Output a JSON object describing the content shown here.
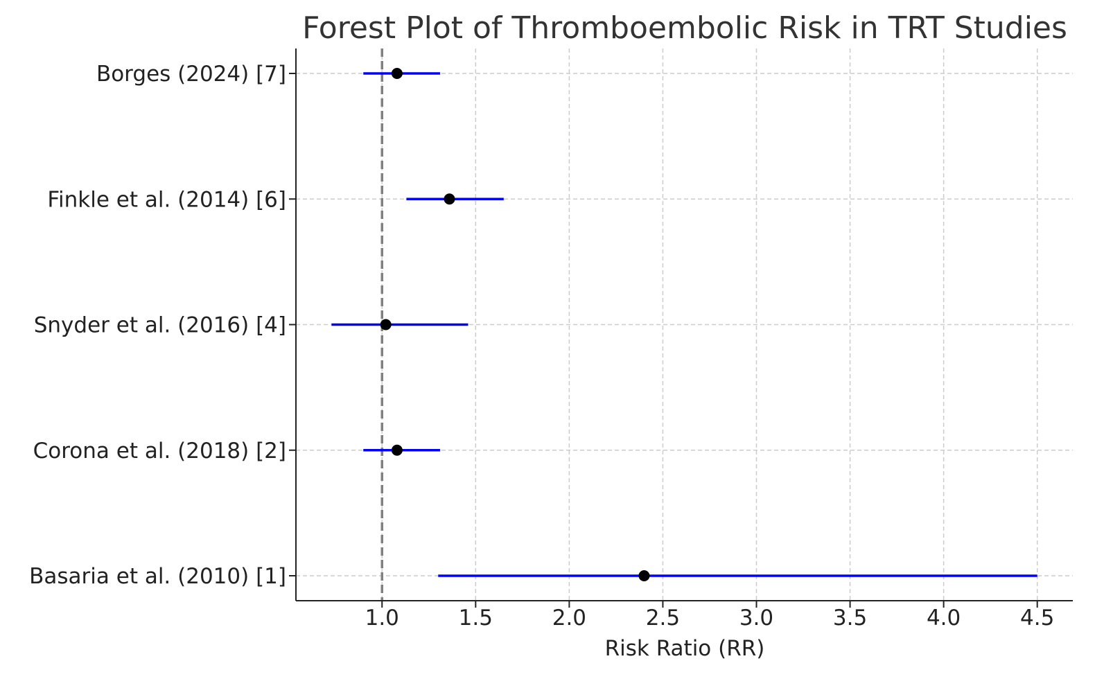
{
  "chart_data": {
    "type": "forest",
    "title": "Forest Plot of Thromboembolic Risk in TRT Studies",
    "xlabel": "Risk Ratio (RR)",
    "ylabel": "",
    "xlim": [
      0.54,
      4.69
    ],
    "x_ticks": [
      1.0,
      1.5,
      2.0,
      2.5,
      3.0,
      3.5,
      4.0,
      4.5
    ],
    "x_tick_labels": [
      "1.0",
      "1.5",
      "2.0",
      "2.5",
      "3.0",
      "3.5",
      "4.0",
      "4.5"
    ],
    "reference_line": 1.0,
    "grid": true,
    "studies": [
      {
        "label": "Borges (2024) [7]",
        "rr": 1.08,
        "ci_low": 0.9,
        "ci_high": 1.31
      },
      {
        "label": "Finkle et al. (2014) [6]",
        "rr": 1.36,
        "ci_low": 1.13,
        "ci_high": 1.65
      },
      {
        "label": "Snyder et al. (2016) [4]",
        "rr": 1.02,
        "ci_low": 0.73,
        "ci_high": 1.46
      },
      {
        "label": "Corona et al. (2018) [2]",
        "rr": 1.08,
        "ci_low": 0.9,
        "ci_high": 1.31
      },
      {
        "label": "Basaria et al. (2010) [1]",
        "rr": 2.4,
        "ci_low": 1.3,
        "ci_high": 4.5
      }
    ],
    "colors": {
      "ci_line": "#0000ff",
      "point": "#000000",
      "reference_line": "#808080",
      "grid": "#cccccc",
      "axis": "#222222"
    }
  }
}
